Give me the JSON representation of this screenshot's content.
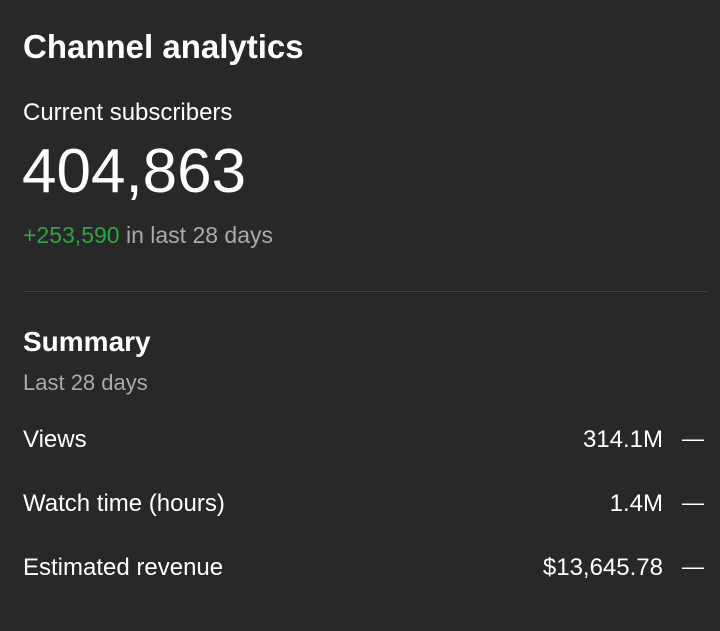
{
  "header": {
    "title": "Channel analytics"
  },
  "subscribers": {
    "label": "Current subscribers",
    "count": "404,863",
    "change": "+253,590",
    "change_period": "in last 28 days"
  },
  "summary": {
    "title": "Summary",
    "period": "Last 28 days",
    "rows": [
      {
        "label": "Views",
        "value": "314.1M",
        "trend": "—"
      },
      {
        "label": "Watch time (hours)",
        "value": "1.4M",
        "trend": "—"
      },
      {
        "label": "Estimated revenue",
        "value": "$13,645.78",
        "trend": "—"
      }
    ]
  }
}
